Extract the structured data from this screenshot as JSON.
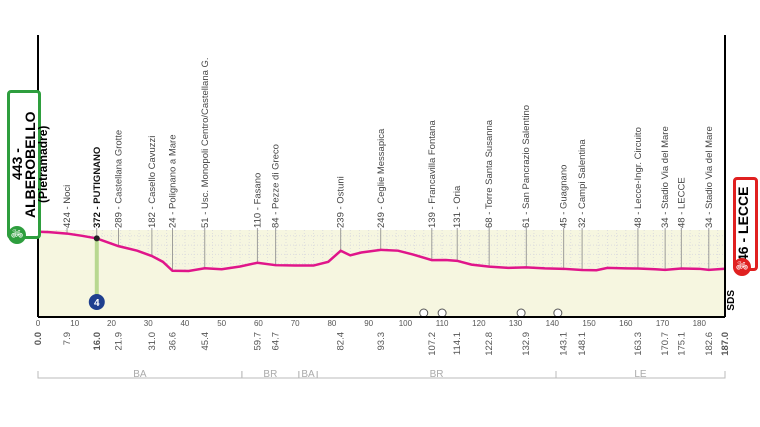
{
  "start": {
    "altitude": "443",
    "name": "ALBEROBELLO",
    "sub": "(Pietramadre)"
  },
  "finish": {
    "altitude": "46",
    "name": "LECCE"
  },
  "sds_label": "SDS",
  "colors": {
    "profile": "#e0158a",
    "fill": "#f6f6e0",
    "start": "#2e9e3e",
    "finish": "#e02020",
    "kom": "#1f3f8f"
  },
  "chart_data": {
    "type": "area",
    "xlim": [
      0,
      187
    ],
    "ylim": [
      0,
      500
    ],
    "y_ticks": [
      0,
      100,
      200,
      300,
      400
    ],
    "x_ticks": [
      0,
      10,
      20,
      30,
      40,
      50,
      60,
      70,
      80,
      90,
      100,
      110,
      120,
      130,
      140,
      150,
      160,
      170,
      180
    ],
    "profile": [
      [
        0,
        443
      ],
      [
        3,
        440
      ],
      [
        7.9,
        424
      ],
      [
        12,
        400
      ],
      [
        16,
        372
      ],
      [
        21.9,
        289
      ],
      [
        27,
        240
      ],
      [
        31,
        182
      ],
      [
        34,
        120
      ],
      [
        36.6,
        24
      ],
      [
        41,
        22
      ],
      [
        45.4,
        51
      ],
      [
        50,
        40
      ],
      [
        55,
        70
      ],
      [
        59.7,
        110
      ],
      [
        64.7,
        84
      ],
      [
        70,
        80
      ],
      [
        75,
        80
      ],
      [
        79,
        120
      ],
      [
        82.4,
        239
      ],
      [
        85,
        190
      ],
      [
        88,
        220
      ],
      [
        93.3,
        249
      ],
      [
        98,
        240
      ],
      [
        102,
        200
      ],
      [
        107.2,
        139
      ],
      [
        111,
        140
      ],
      [
        114.1,
        131
      ],
      [
        118,
        90
      ],
      [
        122.8,
        68
      ],
      [
        128,
        55
      ],
      [
        132.9,
        61
      ],
      [
        138,
        50
      ],
      [
        143.1,
        45
      ],
      [
        148.1,
        32
      ],
      [
        152,
        30
      ],
      [
        155,
        55
      ],
      [
        160,
        50
      ],
      [
        163.3,
        48
      ],
      [
        168,
        40
      ],
      [
        170.7,
        34
      ],
      [
        175.1,
        48
      ],
      [
        180,
        45
      ],
      [
        182.6,
        34
      ],
      [
        187,
        46
      ]
    ],
    "waypoints": [
      {
        "km": 7.9,
        "label": "424 - Noci"
      },
      {
        "km": 16.0,
        "label": "372 - PUTIGNANO",
        "bold": true
      },
      {
        "km": 21.9,
        "label": "289 - Castellana Grotte"
      },
      {
        "km": 31.0,
        "label": "182 - Casello Cavuzzi"
      },
      {
        "km": 36.6,
        "label": "24 - Polignano a Mare"
      },
      {
        "km": 45.4,
        "label": "51 - Usc. Monopoli Centro/Castellana G."
      },
      {
        "km": 59.7,
        "label": "110 - Fasano"
      },
      {
        "km": 64.7,
        "label": "84 - Pezze di Greco"
      },
      {
        "km": 82.4,
        "label": "239 - Ostuni"
      },
      {
        "km": 93.3,
        "label": "249 - Ceglie Messapica"
      },
      {
        "km": 107.2,
        "label": "139 - Francavilla Fontana"
      },
      {
        "km": 114.1,
        "label": "131 - Oria"
      },
      {
        "km": 122.8,
        "label": "68 - Torre Santa Susanna"
      },
      {
        "km": 132.9,
        "label": "61 - San Pancrazio Salentino"
      },
      {
        "km": 143.1,
        "label": "45 - Guagnano"
      },
      {
        "km": 148.1,
        "label": "32 - Campi Salentina"
      },
      {
        "km": 163.3,
        "label": "48 - Lecce-Ingr. Circuito"
      },
      {
        "km": 170.7,
        "label": "34 - Stadio Via del Mare"
      },
      {
        "km": 175.1,
        "label": "48 - LECCE"
      },
      {
        "km": 182.6,
        "label": "34 - Stadio Via del Mare"
      }
    ],
    "distances": [
      "0.0",
      "7.9",
      "16.0",
      "21.9",
      "31.0",
      "36.6",
      "45.4",
      "59.7",
      "64.7",
      "82.4",
      "93.3",
      "107.2",
      "114.1",
      "122.8",
      "132.9",
      "143.1",
      "148.1",
      "163.3",
      "170.7",
      "175.1",
      "182.6",
      "187.0"
    ],
    "kom": {
      "km": 16.0,
      "category": "4"
    },
    "markers_km": [
      105,
      110,
      131.5,
      141.5
    ],
    "provinces": [
      {
        "name": "BA",
        "from": 0,
        "to": 55.5
      },
      {
        "name": "BR",
        "from": 55.5,
        "to": 71
      },
      {
        "name": "BA",
        "from": 71,
        "to": 76
      },
      {
        "name": "BR",
        "from": 76,
        "to": 141
      },
      {
        "name": "LE",
        "from": 141,
        "to": 187
      }
    ]
  }
}
